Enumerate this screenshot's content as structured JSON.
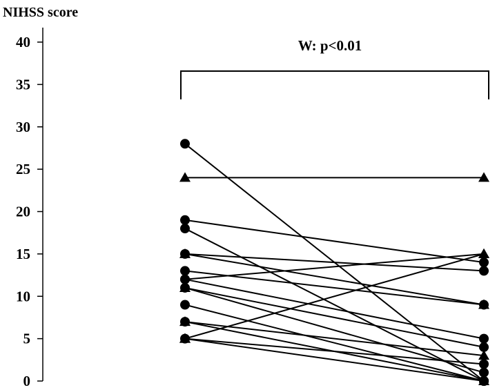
{
  "chart_data": {
    "type": "line",
    "ylabel": "NIHSS score",
    "ylim": [
      0,
      40
    ],
    "yticks": [
      0,
      5,
      10,
      15,
      20,
      25,
      30,
      35,
      40
    ],
    "annotation": "W: p<0.01",
    "series": [
      {
        "values": [
          28,
          0
        ],
        "marker": [
          "circle",
          "circle"
        ]
      },
      {
        "values": [
          24,
          24
        ],
        "marker": [
          "triangle",
          "triangle"
        ]
      },
      {
        "values": [
          19,
          14
        ],
        "marker": [
          "circle",
          "circle"
        ]
      },
      {
        "values": [
          18,
          0
        ],
        "marker": [
          "circle",
          "circle"
        ]
      },
      {
        "values": [
          15,
          13
        ],
        "marker": [
          "circle",
          "circle"
        ]
      },
      {
        "values": [
          15,
          9
        ],
        "marker": [
          "triangle",
          "triangle"
        ]
      },
      {
        "values": [
          13,
          9
        ],
        "marker": [
          "circle",
          "circle"
        ]
      },
      {
        "values": [
          12,
          15
        ],
        "marker": [
          "circle",
          "triangle"
        ]
      },
      {
        "values": [
          12,
          5
        ],
        "marker": [
          "circle",
          "circle"
        ]
      },
      {
        "values": [
          11,
          4
        ],
        "marker": [
          "triangle",
          "circle"
        ]
      },
      {
        "values": [
          11,
          1
        ],
        "marker": [
          "circle",
          "circle"
        ]
      },
      {
        "values": [
          9,
          0
        ],
        "marker": [
          "circle",
          "circle"
        ]
      },
      {
        "values": [
          7,
          3
        ],
        "marker": [
          "circle",
          "triangle"
        ]
      },
      {
        "values": [
          7,
          0
        ],
        "marker": [
          "triangle",
          "triangle"
        ]
      },
      {
        "values": [
          5,
          15
        ],
        "marker": [
          "triangle",
          "triangle"
        ]
      },
      {
        "values": [
          5,
          2
        ],
        "marker": [
          "circle",
          "circle"
        ]
      },
      {
        "values": [
          5,
          0
        ],
        "marker": [
          "triangle",
          "circle"
        ]
      }
    ]
  }
}
